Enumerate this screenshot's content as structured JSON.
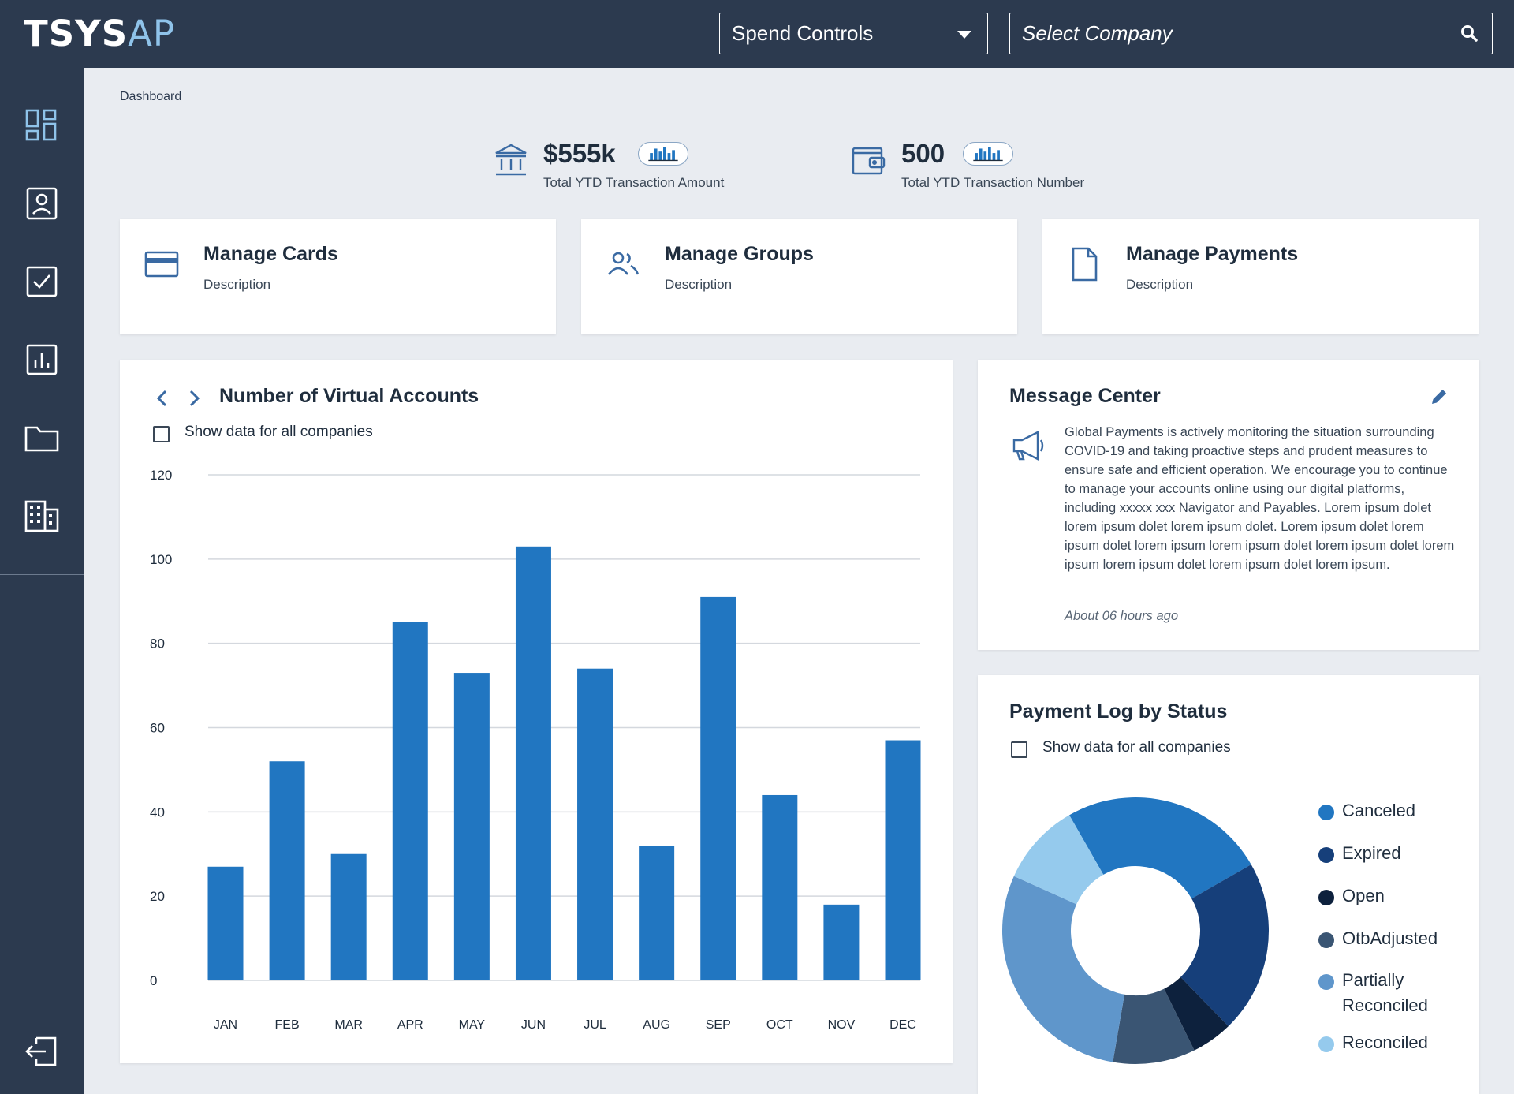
{
  "app": {
    "logo_bold": "TSYS",
    "logo_light": "AP"
  },
  "header": {
    "spend_controls": "Spend Controls",
    "company_placeholder": "Select Company"
  },
  "sidebar": {
    "items": [
      "dashboard-icon",
      "contact-card-icon",
      "checkbox-icon",
      "report-chart-icon",
      "folder-icon",
      "building-icon"
    ],
    "logout": "logout-icon"
  },
  "breadcrumb": "Dashboard",
  "kpis": [
    {
      "value": "$555k",
      "label": "Total YTD Transaction Amount",
      "icon": "bank-icon"
    },
    {
      "value": "500",
      "label": "Total YTD Transaction Number",
      "icon": "wallet-icon"
    }
  ],
  "manage_cards": [
    {
      "title": "Manage Cards",
      "description": "Description",
      "icon": "credit-card-icon"
    },
    {
      "title": "Manage Groups",
      "description": "Description",
      "icon": "users-icon"
    },
    {
      "title": "Manage Payments",
      "description": "Description",
      "icon": "document-icon"
    }
  ],
  "virtual_accounts": {
    "title": "Number of Virtual Accounts",
    "checkbox_label": "Show data for all companies"
  },
  "message_center": {
    "title": "Message Center",
    "body": "Global Payments is actively monitoring the situation surrounding COVID-19 and taking proactive steps and prudent measures to ensure safe and efficient operation. We encourage you to continue to manage your accounts online using our digital platforms, including xxxxx xxx Navigator and Payables. Lorem ipsum dolet lorem ipsum dolet lorem ipsum dolet. Lorem ipsum dolet lorem ipsum dolet lorem ipsum lorem ipsum dolet lorem ipsum dolet lorem ipsum lorem ipsum dolet lorem ipsum dolet lorem ipsum.",
    "time": "About 06 hours ago"
  },
  "payment_log": {
    "title": "Payment Log by Status",
    "checkbox_label": "Show data for all companies"
  },
  "colors": {
    "navy": "#2c3a4f",
    "bar": "#2176c1",
    "canceled": "#2176c1",
    "expired": "#163f7a",
    "open": "#0d213d",
    "otbadjusted": "#3a5573",
    "partially_reconciled": "#5f96cb",
    "reconciled": "#95caed"
  },
  "chart_data": [
    {
      "type": "bar",
      "categories": [
        "JAN",
        "FEB",
        "MAR",
        "APR",
        "MAY",
        "JUN",
        "JUL",
        "AUG",
        "SEP",
        "OCT",
        "NOV",
        "DEC"
      ],
      "values": [
        27,
        52,
        30,
        85,
        73,
        103,
        74,
        32,
        91,
        44,
        18,
        57
      ],
      "yticks": [
        0,
        20,
        40,
        60,
        80,
        100,
        120
      ],
      "ylim": [
        0,
        120
      ],
      "grid": true
    },
    {
      "type": "pie",
      "donut": true,
      "labels": [
        "Canceled",
        "Expired",
        "Open",
        "OtbAdjusted",
        "Partially Reconciled",
        "Reconciled"
      ],
      "values": [
        25,
        21,
        5,
        10,
        29,
        10
      ],
      "legend": "right"
    }
  ]
}
